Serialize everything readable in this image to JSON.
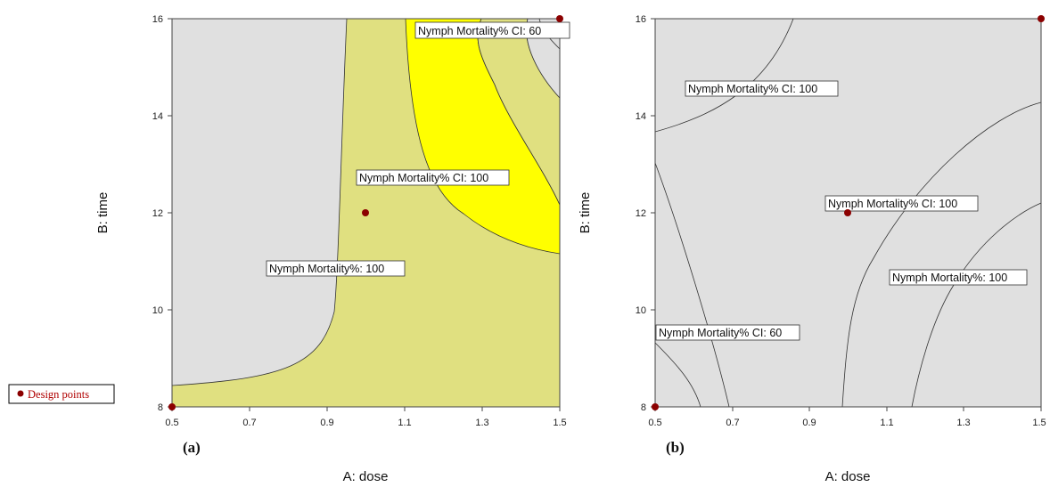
{
  "legend": {
    "label": "Design points",
    "color": "#8b0000"
  },
  "chart_data": [
    {
      "type": "contour",
      "panel_label": "(a)",
      "xlabel": "A: dose",
      "ylabel": "B: time",
      "xlim": [
        0.5,
        1.5
      ],
      "ylim": [
        8,
        16
      ],
      "x_ticks": [
        "0.5",
        "0.7",
        "0.9",
        "1.1",
        "1.3",
        "1.5"
      ],
      "y_ticks": [
        "8",
        "10",
        "12",
        "14",
        "16"
      ],
      "region_colors": {
        "outside": "#e0e0e0",
        "desirable": "#e0e080",
        "optimal": "#ffff00"
      },
      "contour_labels": [
        "Nymph Mortality% CI: 60",
        "Nymph Mortality% CI: 100",
        "Nymph Mortality%: 100"
      ],
      "design_points": [
        [
          0.5,
          8
        ],
        [
          1.0,
          12
        ],
        [
          1.5,
          16
        ]
      ]
    },
    {
      "type": "contour",
      "panel_label": "(b)",
      "xlabel": "A: dose",
      "ylabel": "B: time",
      "xlim": [
        0.5,
        1.5
      ],
      "ylim": [
        8,
        16
      ],
      "x_ticks": [
        "0.5",
        "0.7",
        "0.9",
        "1.1",
        "1.3",
        "1.5"
      ],
      "y_ticks": [
        "8",
        "10",
        "12",
        "14",
        "16"
      ],
      "region_colors": {
        "outside": "#e0e0e0"
      },
      "contour_labels": [
        "Nymph Mortality% CI: 100",
        "Nymph Mortality% CI: 100",
        "Nymph Mortality%: 100",
        "Nymph Mortality% CI: 60"
      ],
      "design_points": [
        [
          0.5,
          8
        ],
        [
          1.0,
          12
        ],
        [
          1.5,
          16
        ]
      ]
    }
  ]
}
